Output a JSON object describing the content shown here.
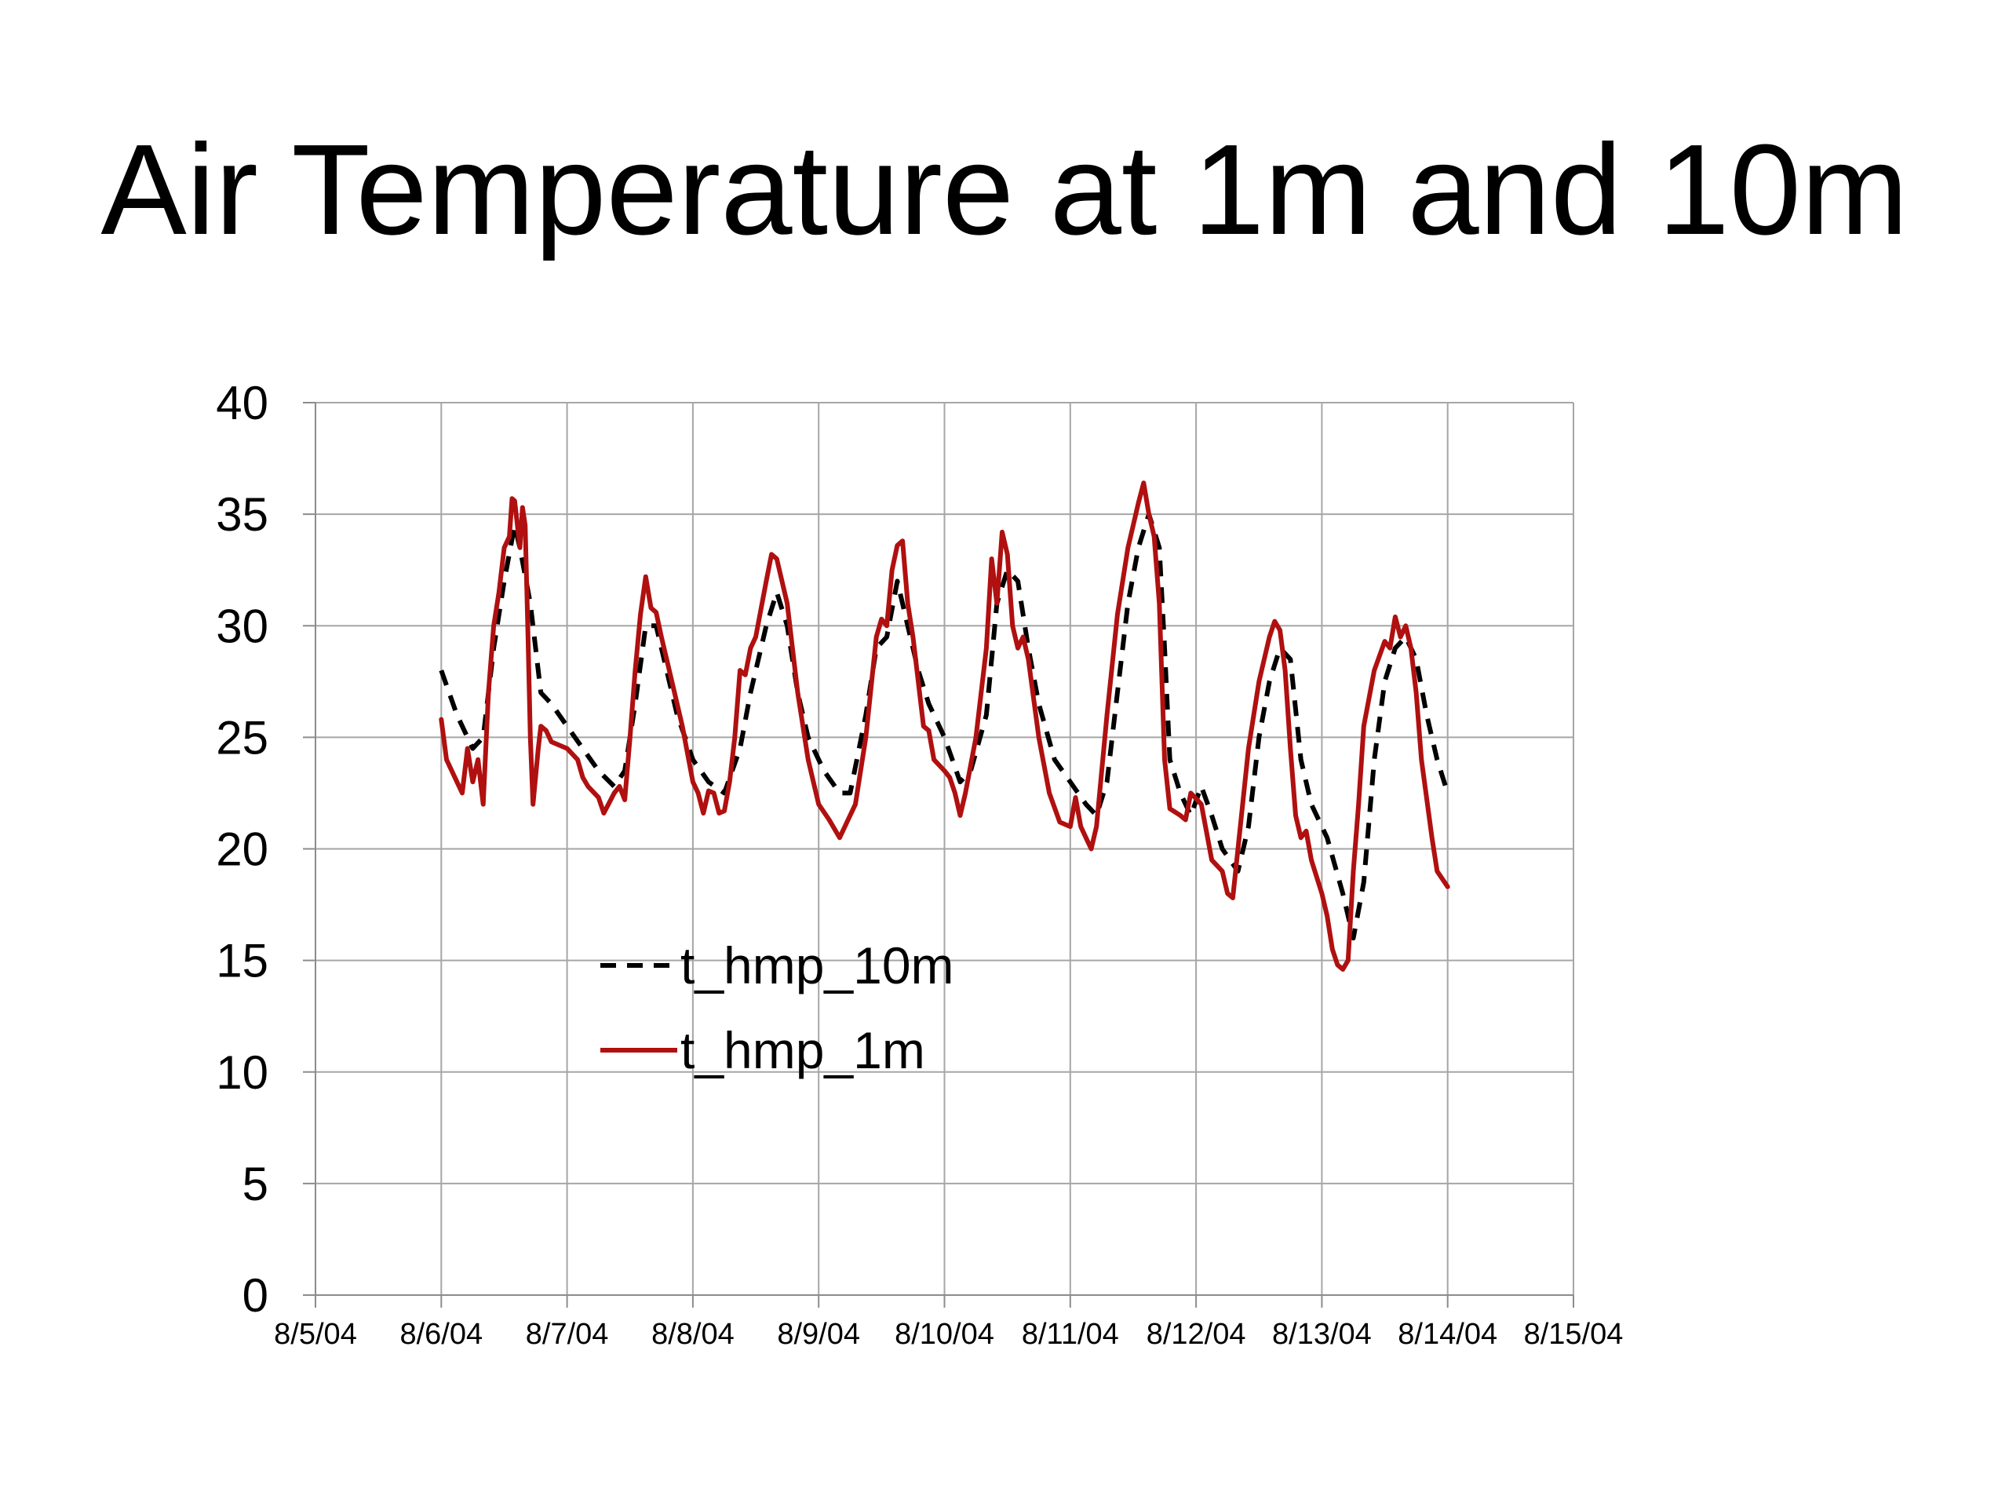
{
  "slide": {
    "title": "Air Temperature at 1m and 10m"
  },
  "chart_data": {
    "type": "line",
    "title": "",
    "xlabel": "",
    "ylabel": "",
    "ylim": [
      0,
      40
    ],
    "yticks": [
      "0",
      "5",
      "10",
      "15",
      "20",
      "25",
      "30",
      "35",
      "40"
    ],
    "xlim": [
      "2004-08-05",
      "2004-08-15"
    ],
    "xticks": [
      "8/5/04",
      "8/6/04",
      "8/7/04",
      "8/8/04",
      "8/9/04",
      "8/10/04",
      "8/11/04",
      "8/12/04",
      "8/13/04",
      "8/14/04",
      "8/15/04"
    ],
    "grid": true,
    "legend_position": "lower-left-inside",
    "series": [
      {
        "name": "t_hmp_10m",
        "color": "#000000",
        "style": "dashed",
        "points": [
          [
            "2004-08-06 00:00",
            28.0
          ],
          [
            "2004-08-06 03:00",
            26.0
          ],
          [
            "2004-08-06 06:00",
            24.5
          ],
          [
            "2004-08-06 08:00",
            25.0
          ],
          [
            "2004-08-06 10:00",
            29.0
          ],
          [
            "2004-08-06 12:00",
            32.0
          ],
          [
            "2004-08-06 14:00",
            34.5
          ],
          [
            "2004-08-06 15:00",
            33.5
          ],
          [
            "2004-08-06 17:00",
            31.0
          ],
          [
            "2004-08-06 19:00",
            27.0
          ],
          [
            "2004-08-06 21:00",
            26.5
          ],
          [
            "2004-08-07 00:00",
            25.5
          ],
          [
            "2004-08-07 03:00",
            24.5
          ],
          [
            "2004-08-07 06:00",
            23.5
          ],
          [
            "2004-08-07 09:00",
            22.8
          ],
          [
            "2004-08-07 11:00",
            23.5
          ],
          [
            "2004-08-07 13:00",
            26.5
          ],
          [
            "2004-08-07 15:00",
            30.0
          ],
          [
            "2004-08-07 17:00",
            30.0
          ],
          [
            "2004-08-07 19:00",
            28.0
          ],
          [
            "2004-08-07 21:00",
            26.0
          ],
          [
            "2004-08-08 00:00",
            24.0
          ],
          [
            "2004-08-08 03:00",
            23.0
          ],
          [
            "2004-08-08 06:00",
            22.5
          ],
          [
            "2004-08-08 09:00",
            24.5
          ],
          [
            "2004-08-08 11:00",
            27.0
          ],
          [
            "2004-08-08 14:00",
            30.0
          ],
          [
            "2004-08-08 16:00",
            31.5
          ],
          [
            "2004-08-08 18:00",
            30.0
          ],
          [
            "2004-08-08 20:00",
            27.0
          ],
          [
            "2004-08-08 22:00",
            25.0
          ],
          [
            "2004-08-09 01:00",
            23.5
          ],
          [
            "2004-08-09 04:00",
            22.5
          ],
          [
            "2004-08-09 06:00",
            22.5
          ],
          [
            "2004-08-09 09:00",
            26.0
          ],
          [
            "2004-08-09 11:00",
            29.0
          ],
          [
            "2004-08-09 13:00",
            29.5
          ],
          [
            "2004-08-09 15:00",
            32.0
          ],
          [
            "2004-08-09 17:00",
            30.0
          ],
          [
            "2004-08-09 19:00",
            28.0
          ],
          [
            "2004-08-09 21:00",
            26.5
          ],
          [
            "2004-08-10 00:00",
            25.0
          ],
          [
            "2004-08-10 03:00",
            23.0
          ],
          [
            "2004-08-10 05:00",
            23.5
          ],
          [
            "2004-08-10 08:00",
            26.0
          ],
          [
            "2004-08-10 10:00",
            31.0
          ],
          [
            "2004-08-10 12:00",
            32.5
          ],
          [
            "2004-08-10 14:00",
            32.0
          ],
          [
            "2004-08-10 16:00",
            29.0
          ],
          [
            "2004-08-10 18:00",
            26.5
          ],
          [
            "2004-08-10 21:00",
            24.0
          ],
          [
            "2004-08-11 00:00",
            23.0
          ],
          [
            "2004-08-11 03:00",
            22.0
          ],
          [
            "2004-08-11 05:00",
            21.5
          ],
          [
            "2004-08-11 07:00",
            23.0
          ],
          [
            "2004-08-11 09:00",
            27.0
          ],
          [
            "2004-08-11 11:00",
            31.0
          ],
          [
            "2004-08-11 13:00",
            33.5
          ],
          [
            "2004-08-11 15:00",
            35.0
          ],
          [
            "2004-08-11 17:00",
            33.5
          ],
          [
            "2004-08-11 18:00",
            29.0
          ],
          [
            "2004-08-11 19:00",
            24.0
          ],
          [
            "2004-08-11 21:00",
            22.5
          ],
          [
            "2004-08-11 23:00",
            21.5
          ],
          [
            "2004-08-12 01:00",
            22.8
          ],
          [
            "2004-08-12 03:00",
            21.5
          ],
          [
            "2004-08-12 05:00",
            20.0
          ],
          [
            "2004-08-12 08:00",
            19.0
          ],
          [
            "2004-08-12 10:00",
            21.0
          ],
          [
            "2004-08-12 12:00",
            25.0
          ],
          [
            "2004-08-12 14:00",
            27.5
          ],
          [
            "2004-08-12 16:00",
            29.0
          ],
          [
            "2004-08-12 18:00",
            28.5
          ],
          [
            "2004-08-12 20:00",
            24.0
          ],
          [
            "2004-08-12 22:00",
            22.0
          ],
          [
            "2004-08-13 01:00",
            20.5
          ],
          [
            "2004-08-13 04:00",
            18.0
          ],
          [
            "2004-08-13 06:00",
            16.0
          ],
          [
            "2004-08-13 08:00",
            18.5
          ],
          [
            "2004-08-13 10:00",
            24.0
          ],
          [
            "2004-08-13 12:00",
            27.5
          ],
          [
            "2004-08-13 14:00",
            29.0
          ],
          [
            "2004-08-13 16:00",
            29.5
          ],
          [
            "2004-08-13 18:00",
            28.5
          ],
          [
            "2004-08-13 20:00",
            26.0
          ],
          [
            "2004-08-13 22:00",
            24.0
          ],
          [
            "2004-08-14 00:00",
            22.5
          ]
        ]
      },
      {
        "name": "t_hmp_1m",
        "color": "#b01010",
        "style": "solid",
        "points": [
          [
            "2004-08-06 00:00",
            25.8
          ],
          [
            "2004-08-06 01:00",
            24.0
          ],
          [
            "2004-08-06 03:00",
            23.0
          ],
          [
            "2004-08-06 04:00",
            22.5
          ],
          [
            "2004-08-06 05:00",
            24.5
          ],
          [
            "2004-08-06 06:00",
            23.0
          ],
          [
            "2004-08-06 07:00",
            24.0
          ],
          [
            "2004-08-06 08:00",
            22.0
          ],
          [
            "2004-08-06 09:00",
            27.0
          ],
          [
            "2004-08-06 10:00",
            30.0
          ],
          [
            "2004-08-06 11:00",
            31.5
          ],
          [
            "2004-08-06 12:00",
            33.5
          ],
          [
            "2004-08-06 13:00",
            34.0
          ],
          [
            "2004-08-06 13:30",
            35.7
          ],
          [
            "2004-08-06 14:00",
            35.6
          ],
          [
            "2004-08-06 15:00",
            33.5
          ],
          [
            "2004-08-06 15:30",
            35.3
          ],
          [
            "2004-08-06 16:00",
            34.5
          ],
          [
            "2004-08-06 16:30",
            30.0
          ],
          [
            "2004-08-06 17:00",
            25.0
          ],
          [
            "2004-08-06 17:30",
            22.0
          ],
          [
            "2004-08-06 18:30",
            24.5
          ],
          [
            "2004-08-06 19:00",
            25.5
          ],
          [
            "2004-08-06 20:00",
            25.3
          ],
          [
            "2004-08-06 21:00",
            24.8
          ],
          [
            "2004-08-07 00:00",
            24.5
          ],
          [
            "2004-08-07 02:00",
            24.0
          ],
          [
            "2004-08-07 03:00",
            23.2
          ],
          [
            "2004-08-07 04:00",
            22.8
          ],
          [
            "2004-08-07 06:00",
            22.3
          ],
          [
            "2004-08-07 07:00",
            21.6
          ],
          [
            "2004-08-07 09:00",
            22.5
          ],
          [
            "2004-08-07 10:00",
            22.8
          ],
          [
            "2004-08-07 11:00",
            22.2
          ],
          [
            "2004-08-07 12:00",
            25.0
          ],
          [
            "2004-08-07 13:00",
            28.0
          ],
          [
            "2004-08-07 14:00",
            30.5
          ],
          [
            "2004-08-07 15:00",
            32.2
          ],
          [
            "2004-08-07 16:00",
            30.8
          ],
          [
            "2004-08-07 17:00",
            30.6
          ],
          [
            "2004-08-07 18:00",
            29.5
          ],
          [
            "2004-08-07 20:00",
            27.5
          ],
          [
            "2004-08-07 22:00",
            25.5
          ],
          [
            "2004-08-08 00:00",
            23.0
          ],
          [
            "2004-08-08 01:00",
            22.5
          ],
          [
            "2004-08-08 02:00",
            21.6
          ],
          [
            "2004-08-08 03:00",
            22.6
          ],
          [
            "2004-08-08 04:00",
            22.5
          ],
          [
            "2004-08-08 05:00",
            21.6
          ],
          [
            "2004-08-08 06:00",
            21.7
          ],
          [
            "2004-08-08 07:00",
            23.0
          ],
          [
            "2004-08-08 08:00",
            25.0
          ],
          [
            "2004-08-08 09:00",
            28.0
          ],
          [
            "2004-08-08 10:00",
            27.8
          ],
          [
            "2004-08-08 11:00",
            29.0
          ],
          [
            "2004-08-08 12:00",
            29.5
          ],
          [
            "2004-08-08 14:00",
            32.0
          ],
          [
            "2004-08-08 15:00",
            33.2
          ],
          [
            "2004-08-08 16:00",
            33.0
          ],
          [
            "2004-08-08 18:00",
            31.0
          ],
          [
            "2004-08-08 20:00",
            27.0
          ],
          [
            "2004-08-08 22:00",
            24.0
          ],
          [
            "2004-08-09 00:00",
            22.0
          ],
          [
            "2004-08-09 02:00",
            21.3
          ],
          [
            "2004-08-09 04:00",
            20.5
          ],
          [
            "2004-08-09 06:00",
            21.5
          ],
          [
            "2004-08-09 07:00",
            22.0
          ],
          [
            "2004-08-09 09:00",
            25.0
          ],
          [
            "2004-08-09 11:00",
            29.5
          ],
          [
            "2004-08-09 12:00",
            30.3
          ],
          [
            "2004-08-09 13:00",
            30.0
          ],
          [
            "2004-08-09 14:00",
            32.5
          ],
          [
            "2004-08-09 15:00",
            33.6
          ],
          [
            "2004-08-09 16:00",
            33.8
          ],
          [
            "2004-08-09 17:00",
            31.0
          ],
          [
            "2004-08-09 18:00",
            29.5
          ],
          [
            "2004-08-09 19:00",
            27.5
          ],
          [
            "2004-08-09 20:00",
            25.5
          ],
          [
            "2004-08-09 21:00",
            25.3
          ],
          [
            "2004-08-09 22:00",
            24.0
          ],
          [
            "2004-08-10 00:00",
            23.5
          ],
          [
            "2004-08-10 01:00",
            23.2
          ],
          [
            "2004-08-10 02:00",
            22.5
          ],
          [
            "2004-08-10 03:00",
            21.5
          ],
          [
            "2004-08-10 04:00",
            22.5
          ],
          [
            "2004-08-10 06:00",
            25.0
          ],
          [
            "2004-08-10 08:00",
            29.0
          ],
          [
            "2004-08-10 09:00",
            33.0
          ],
          [
            "2004-08-10 10:00",
            31.0
          ],
          [
            "2004-08-10 11:00",
            34.2
          ],
          [
            "2004-08-10 12:00",
            33.2
          ],
          [
            "2004-08-10 13:00",
            30.0
          ],
          [
            "2004-08-10 14:00",
            29.0
          ],
          [
            "2004-08-10 15:00",
            29.5
          ],
          [
            "2004-08-10 16:00",
            28.5
          ],
          [
            "2004-08-10 18:00",
            25.0
          ],
          [
            "2004-08-10 20:00",
            22.5
          ],
          [
            "2004-08-10 22:00",
            21.2
          ],
          [
            "2004-08-11 00:00",
            21.0
          ],
          [
            "2004-08-11 01:00",
            22.3
          ],
          [
            "2004-08-11 02:00",
            21.0
          ],
          [
            "2004-08-11 03:00",
            20.5
          ],
          [
            "2004-08-11 04:00",
            20.0
          ],
          [
            "2004-08-11 05:00",
            21.0
          ],
          [
            "2004-08-11 07:00",
            26.0
          ],
          [
            "2004-08-11 09:00",
            30.5
          ],
          [
            "2004-08-11 11:00",
            33.5
          ],
          [
            "2004-08-11 12:00",
            34.5
          ],
          [
            "2004-08-11 13:00",
            35.5
          ],
          [
            "2004-08-11 14:00",
            36.4
          ],
          [
            "2004-08-11 15:00",
            35.0
          ],
          [
            "2004-08-11 16:00",
            34.0
          ],
          [
            "2004-08-11 17:00",
            31.0
          ],
          [
            "2004-08-11 18:00",
            24.0
          ],
          [
            "2004-08-11 19:00",
            21.8
          ],
          [
            "2004-08-11 21:00",
            21.5
          ],
          [
            "2004-08-11 22:00",
            21.3
          ],
          [
            "2004-08-11 23:00",
            22.5
          ],
          [
            "2004-08-12 01:00",
            22.0
          ],
          [
            "2004-08-12 03:00",
            19.5
          ],
          [
            "2004-08-12 05:00",
            19.0
          ],
          [
            "2004-08-12 06:00",
            18.0
          ],
          [
            "2004-08-12 07:00",
            17.8
          ],
          [
            "2004-08-12 08:00",
            20.0
          ],
          [
            "2004-08-12 10:00",
            24.5
          ],
          [
            "2004-08-12 12:00",
            27.5
          ],
          [
            "2004-08-12 14:00",
            29.5
          ],
          [
            "2004-08-12 15:00",
            30.2
          ],
          [
            "2004-08-12 16:00",
            29.8
          ],
          [
            "2004-08-12 17:00",
            28.0
          ],
          [
            "2004-08-12 18:00",
            24.5
          ],
          [
            "2004-08-12 19:00",
            21.5
          ],
          [
            "2004-08-12 20:00",
            20.5
          ],
          [
            "2004-08-12 21:00",
            20.8
          ],
          [
            "2004-08-12 22:00",
            19.5
          ],
          [
            "2004-08-13 00:00",
            18.0
          ],
          [
            "2004-08-13 01:00",
            17.0
          ],
          [
            "2004-08-13 02:00",
            15.5
          ],
          [
            "2004-08-13 03:00",
            14.8
          ],
          [
            "2004-08-13 04:00",
            14.6
          ],
          [
            "2004-08-13 05:00",
            15.0
          ],
          [
            "2004-08-13 06:00",
            19.0
          ],
          [
            "2004-08-13 07:00",
            22.0
          ],
          [
            "2004-08-13 08:00",
            25.5
          ],
          [
            "2004-08-13 10:00",
            28.0
          ],
          [
            "2004-08-13 12:00",
            29.3
          ],
          [
            "2004-08-13 13:00",
            29.0
          ],
          [
            "2004-08-13 14:00",
            30.4
          ],
          [
            "2004-08-13 15:00",
            29.5
          ],
          [
            "2004-08-13 16:00",
            30.0
          ],
          [
            "2004-08-13 17:00",
            29.0
          ],
          [
            "2004-08-13 18:00",
            27.0
          ],
          [
            "2004-08-13 19:00",
            24.0
          ],
          [
            "2004-08-13 21:00",
            20.5
          ],
          [
            "2004-08-13 22:00",
            19.0
          ],
          [
            "2004-08-14 00:00",
            18.3
          ]
        ]
      }
    ]
  }
}
